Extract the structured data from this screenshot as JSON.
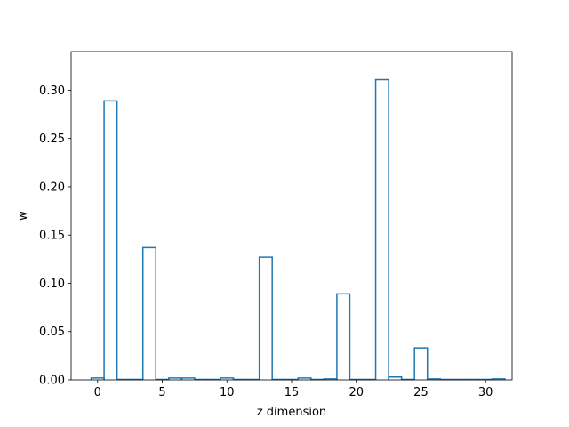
{
  "chart_data": {
    "type": "bar",
    "style": "step-outline",
    "title": "",
    "xlabel": "z dimension",
    "ylabel": "w",
    "xlim": [
      -2.05,
      32.05
    ],
    "ylim": [
      0,
      0.34
    ],
    "x_ticks": [
      0,
      5,
      10,
      15,
      20,
      25,
      30
    ],
    "y_ticks": [
      0.0,
      0.05,
      0.1,
      0.15,
      0.2,
      0.25,
      0.3
    ],
    "y_tick_labels": [
      "0.00",
      "0.05",
      "0.10",
      "0.15",
      "0.20",
      "0.25",
      "0.30"
    ],
    "grid": false,
    "line_color": "#1f77b4",
    "categories": [
      0,
      1,
      2,
      3,
      4,
      5,
      6,
      7,
      8,
      9,
      10,
      11,
      12,
      13,
      14,
      15,
      16,
      17,
      18,
      19,
      20,
      21,
      22,
      23,
      24,
      25,
      26,
      27,
      28,
      29,
      30,
      31
    ],
    "values": [
      0.002,
      0.289,
      0.0005,
      0.0005,
      0.137,
      0.0005,
      0.002,
      0.002,
      0.0005,
      0.0005,
      0.002,
      0.0005,
      0.0005,
      0.127,
      0.0005,
      0.0005,
      0.002,
      0.0005,
      0.001,
      0.089,
      0.0005,
      0.0005,
      0.311,
      0.003,
      0.0005,
      0.033,
      0.001,
      0.0005,
      0.0005,
      0.0005,
      0.0005,
      0.001
    ]
  }
}
